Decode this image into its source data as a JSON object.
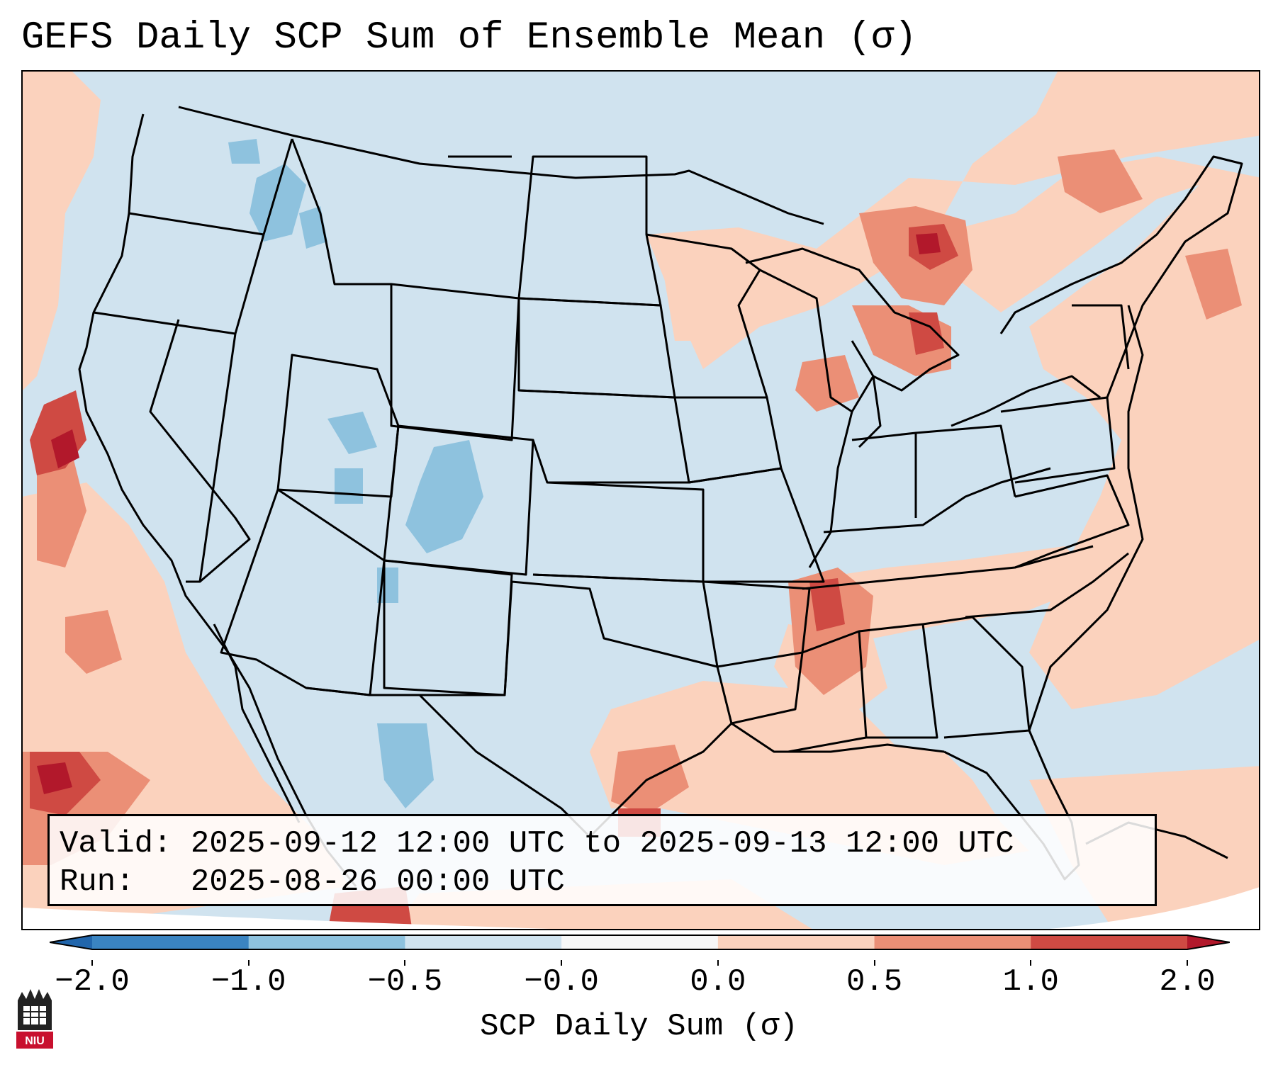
{
  "title": "GEFS Daily SCP Sum of Ensemble Mean (σ)",
  "info": {
    "valid_label": "Valid:",
    "valid_value": "2025-09-12 12:00 UTC to 2025-09-13 12:00 UTC",
    "run_label": "Run:",
    "run_value": "2025-08-26 00:00 UTC"
  },
  "colorbar": {
    "label": "SCP Daily Sum (σ)",
    "ticks": [
      "−2.0",
      "−1.0",
      "−0.5",
      "−0.0",
      "0.0",
      "0.5",
      "1.0",
      "2.0"
    ],
    "colors": [
      "#3a84c1",
      "#8ec2de",
      "#d0e3ef",
      "#f7f7f7",
      "#fbd2bd",
      "#eb8f76",
      "#cf4a43",
      "#b2182b"
    ],
    "under_color": "#2166ac",
    "over_color": "#b2182b"
  },
  "logo": {
    "text": "NIU",
    "color": "#c8102e"
  },
  "icons": [
    "niu-logo-icon"
  ]
}
